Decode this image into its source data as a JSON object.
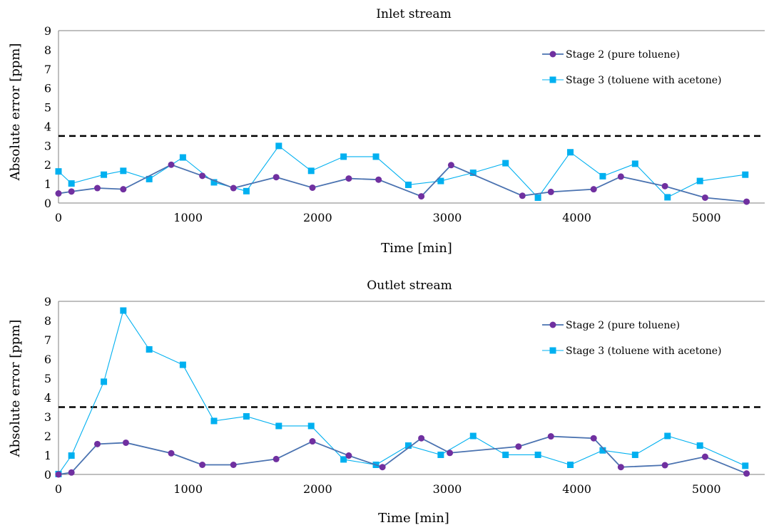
{
  "chart_data": [
    {
      "type": "line",
      "title": "Inlet stream",
      "xlabel": "Time [min]",
      "ylabel": "Absolute error [ppm]",
      "xlim": [
        0,
        5450
      ],
      "ylim": [
        0,
        9
      ],
      "xticks": [
        0,
        1000,
        2000,
        3000,
        4000,
        5000
      ],
      "yticks": [
        0,
        1,
        2,
        3,
        4,
        5,
        6,
        7,
        8,
        9
      ],
      "threshold": {
        "value": 3.5,
        "style": "dashed"
      },
      "legend_position": "top-right",
      "grid": false,
      "series": [
        {
          "name": "Stage 2 (pure toluene)",
          "marker": "circle",
          "color": "#7030a0",
          "line_color": "#4a72b0",
          "x": [
            0,
            100,
            300,
            500,
            870,
            1110,
            1350,
            1680,
            1960,
            2240,
            2470,
            2800,
            3030,
            3580,
            3800,
            4130,
            4340,
            4680,
            4990,
            5310
          ],
          "y": [
            0.5,
            0.6,
            0.78,
            0.72,
            2.0,
            1.42,
            0.78,
            1.35,
            0.8,
            1.28,
            1.22,
            0.35,
            1.98,
            0.38,
            0.58,
            0.72,
            1.38,
            0.88,
            0.28,
            0.07
          ]
        },
        {
          "name": "Stage 3 (toluene with acetone)",
          "marker": "square",
          "color": "#00b0f0",
          "line_color": "#00b0f0",
          "x": [
            0,
            100,
            350,
            500,
            700,
            960,
            1200,
            1450,
            1700,
            1950,
            2200,
            2450,
            2700,
            2950,
            3200,
            3450,
            3700,
            3950,
            4200,
            4450,
            4700,
            4950,
            5300
          ],
          "y": [
            1.65,
            1.02,
            1.48,
            1.68,
            1.25,
            2.38,
            1.08,
            0.62,
            2.98,
            1.68,
            2.42,
            2.42,
            0.95,
            1.15,
            1.58,
            2.08,
            0.28,
            2.65,
            1.4,
            2.05,
            0.3,
            1.15,
            1.48
          ]
        }
      ]
    },
    {
      "type": "line",
      "title": "Outlet stream",
      "xlabel": "Time [min]",
      "ylabel": "Absolute error [ppm]",
      "xlim": [
        0,
        5450
      ],
      "ylim": [
        0,
        9
      ],
      "xticks": [
        0,
        1000,
        2000,
        3000,
        4000,
        5000
      ],
      "yticks": [
        0,
        1,
        2,
        3,
        4,
        5,
        6,
        7,
        8,
        9
      ],
      "threshold": {
        "value": 3.5,
        "style": "dashed"
      },
      "legend_position": "top-right",
      "grid": false,
      "series": [
        {
          "name": "Stage 2 (pure toluene)",
          "marker": "circle",
          "color": "#7030a0",
          "line_color": "#4a72b0",
          "x": [
            0,
            100,
            300,
            520,
            870,
            1110,
            1350,
            1680,
            1960,
            2240,
            2500,
            2800,
            3020,
            3550,
            3800,
            4130,
            4340,
            4680,
            4990,
            5310
          ],
          "y": [
            0.0,
            0.1,
            1.58,
            1.65,
            1.1,
            0.5,
            0.5,
            0.8,
            1.72,
            0.98,
            0.38,
            1.88,
            1.12,
            1.45,
            1.98,
            1.88,
            0.38,
            0.48,
            0.92,
            0.05
          ]
        },
        {
          "name": "Stage 3 (toluene with acetone)",
          "marker": "square",
          "color": "#00b0f0",
          "line_color": "#00b0f0",
          "x": [
            0,
            100,
            350,
            500,
            700,
            960,
            1200,
            1450,
            1700,
            1950,
            2200,
            2450,
            2700,
            2950,
            3200,
            3450,
            3700,
            3950,
            4200,
            4450,
            4700,
            4950,
            5300
          ],
          "y": [
            0.02,
            0.98,
            4.82,
            8.52,
            6.5,
            5.7,
            2.78,
            3.02,
            2.52,
            2.52,
            0.78,
            0.5,
            1.5,
            1.02,
            2.0,
            1.02,
            1.02,
            0.5,
            1.25,
            1.02,
            2.0,
            1.5,
            0.45
          ]
        }
      ]
    }
  ]
}
